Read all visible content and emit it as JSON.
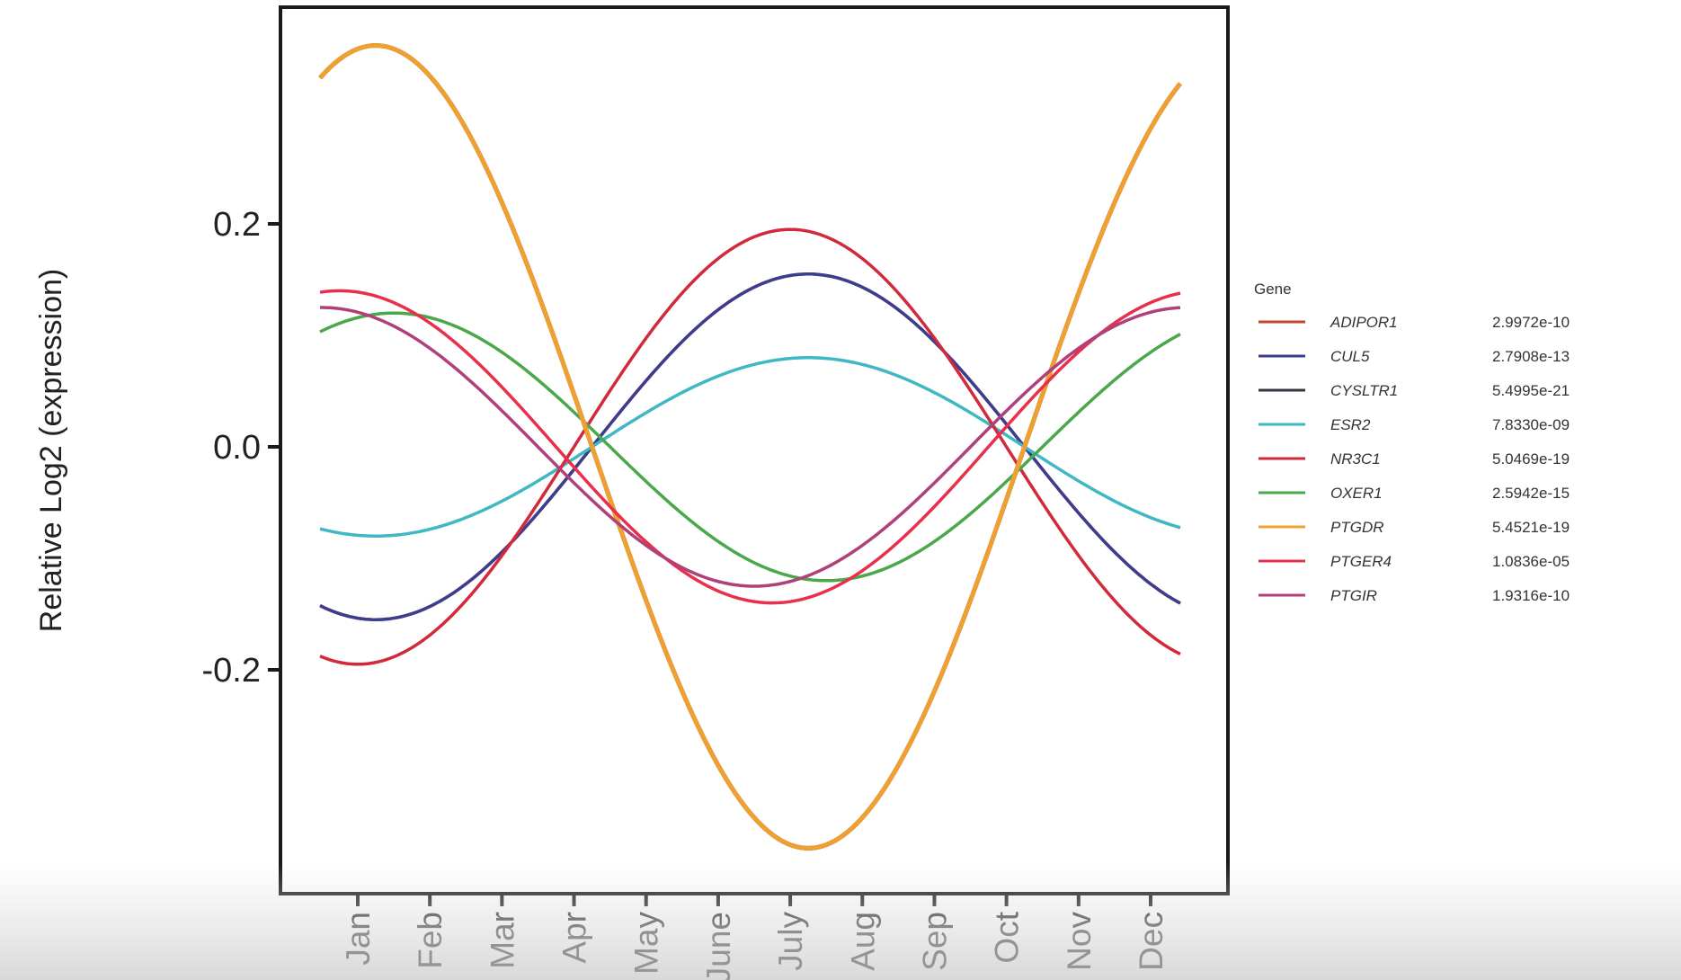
{
  "chart_data": {
    "type": "line",
    "ylabel": "Relative Log2 (expression)",
    "xlabel": "",
    "title": "",
    "x_ticks": [
      "Jan",
      "Feb",
      "Mar",
      "Apr",
      "May",
      "June",
      "July",
      "Aug",
      "Sep",
      "Oct",
      "Nov",
      "Dec"
    ],
    "y_ticks": [
      -0.2,
      0.0,
      0.2
    ],
    "y_tick_labels": [
      "-0.2",
      "0.0",
      "0.2"
    ],
    "ylim": [
      -0.4,
      0.4
    ],
    "grid": false,
    "legend": {
      "title": "Gene",
      "position": "right"
    },
    "series": [
      {
        "name": "ADIPOR1",
        "pvalue": "2.9972e-10",
        "color": "#c2452f",
        "amplitude": 0.155,
        "peak_month": 7.25
      },
      {
        "name": "CUL5",
        "pvalue": "2.7908e-13",
        "color": "#3b3d8f",
        "amplitude": 0.155,
        "peak_month": 7.25
      },
      {
        "name": "CYSLTR1",
        "pvalue": "5.4995e-21",
        "color": "#3a3440",
        "amplitude": 0.36,
        "peak_month": 1.25
      },
      {
        "name": "ESR2",
        "pvalue": "7.8330e-09",
        "color": "#3fb8c4",
        "amplitude": 0.08,
        "peak_month": 7.25
      },
      {
        "name": "NR3C1",
        "pvalue": "5.0469e-19",
        "color": "#d22a3c",
        "amplitude": 0.195,
        "peak_month": 7.0
      },
      {
        "name": "OXER1",
        "pvalue": "2.5942e-15",
        "color": "#4aa84a",
        "amplitude": 0.12,
        "peak_month": 1.5
      },
      {
        "name": "PTGDR",
        "pvalue": "5.4521e-19",
        "color": "#f0a030",
        "amplitude": 0.36,
        "peak_month": 1.25
      },
      {
        "name": "PTGER4",
        "pvalue": "1.0836e-05",
        "color": "#e8304c",
        "amplitude": 0.14,
        "peak_month": 12.75
      },
      {
        "name": "PTGIR",
        "pvalue": "1.9316e-10",
        "color": "#b0407a",
        "amplitude": 0.125,
        "peak_month": 12.5
      }
    ]
  }
}
